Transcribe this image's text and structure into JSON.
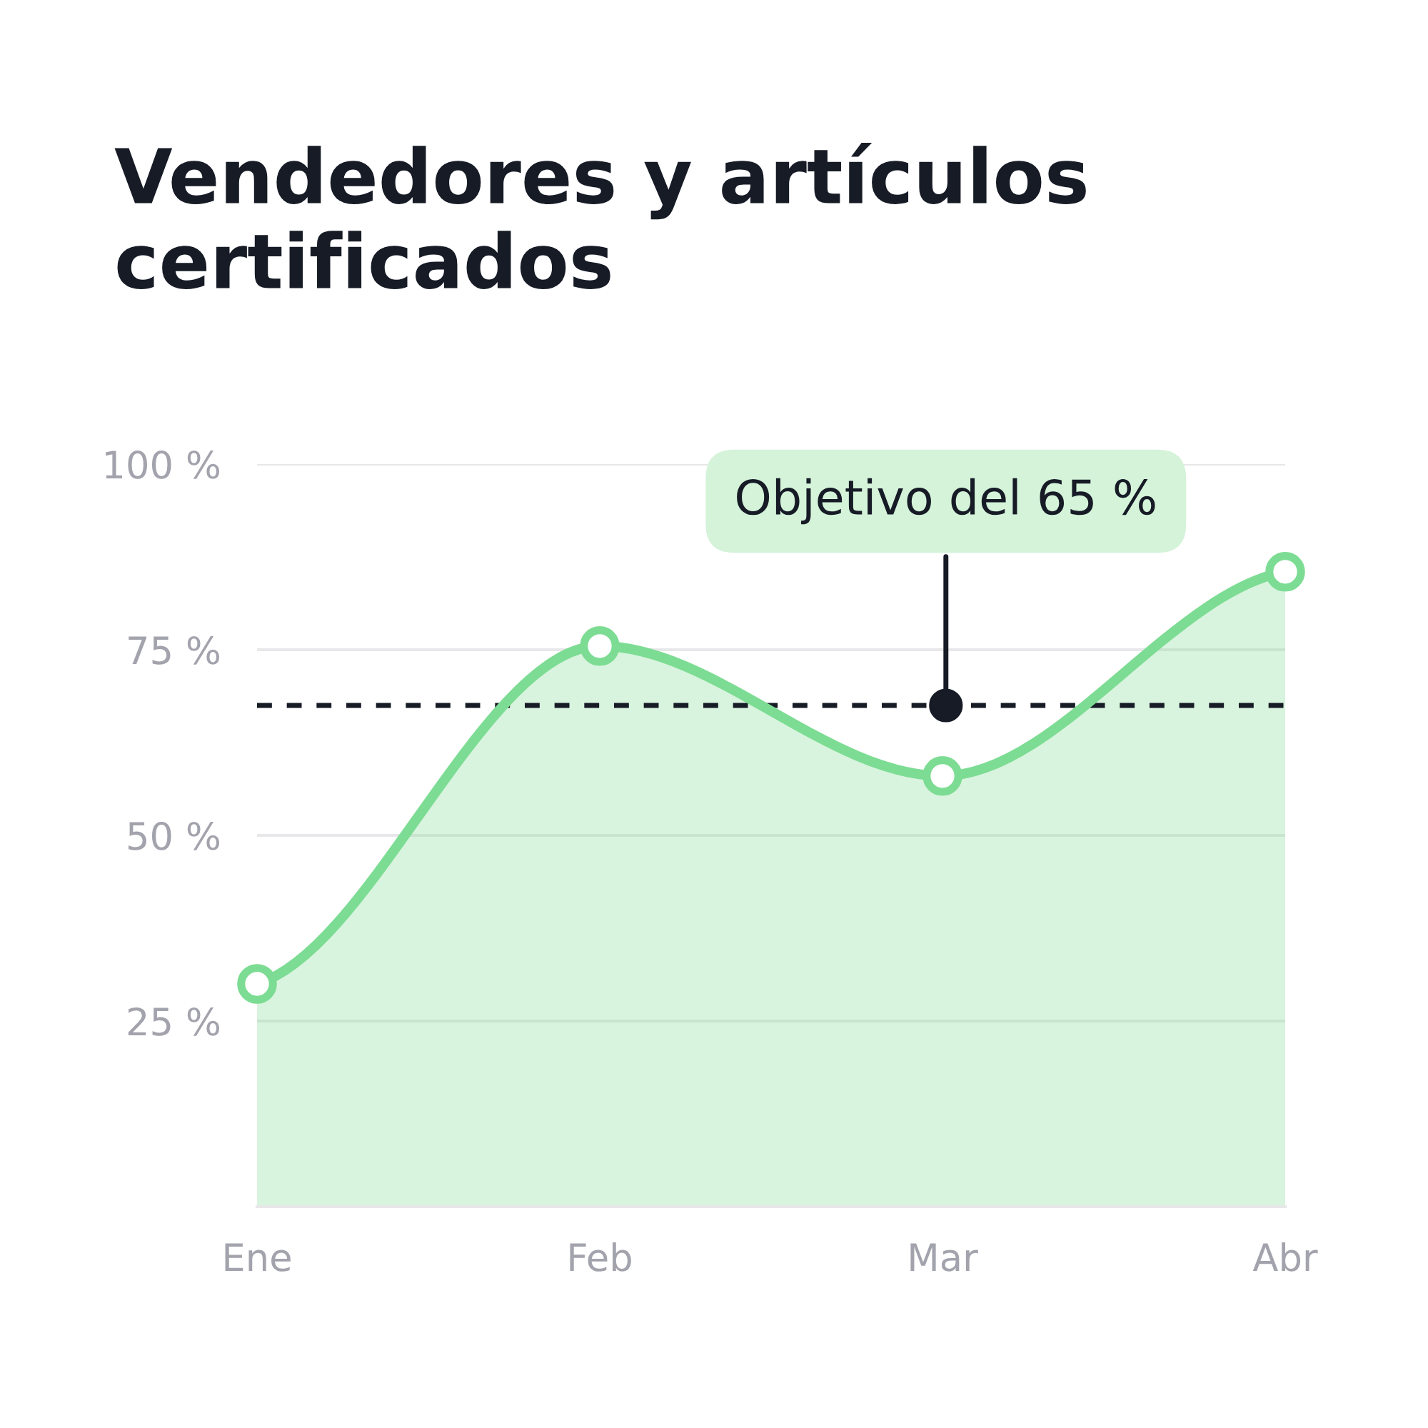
{
  "chart_data": {
    "type": "area",
    "title": "Vendedores y artículos certificados",
    "categories": [
      "Ene",
      "Feb",
      "Mar",
      "Abr"
    ],
    "series": [
      {
        "color": "#7ddc93",
        "values": [
          30,
          75.5,
          58,
          85.5
        ]
      }
    ],
    "ylim": [
      0,
      100
    ],
    "yticks": [
      {
        "value": 25,
        "label": "25 %"
      },
      {
        "value": 50,
        "label": "50 %"
      },
      {
        "value": 75,
        "label": "75 %"
      },
      {
        "value": 100,
        "label": "100 %"
      }
    ],
    "grid": "y",
    "marker": "circle",
    "line_style": "solid",
    "ref_lines": [
      {
        "axis": "y",
        "value": 67.5,
        "label": "Objetivo del 65 %",
        "color": "#161b26",
        "line_style": "dashed"
      }
    ]
  }
}
